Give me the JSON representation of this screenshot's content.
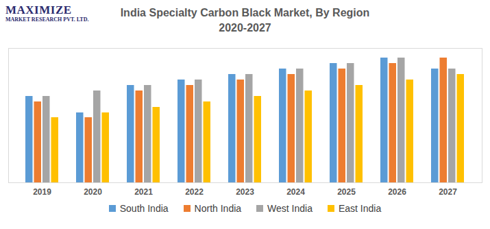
{
  "chart_data": {
    "type": "bar",
    "title": "India Specialty Carbon Black Market, By Region",
    "subtitle": "2020-2027",
    "logo": [
      "MAXIMIZE",
      "MARKET RESEARCH PVT. LTD."
    ],
    "categories": [
      "2019",
      "2020",
      "2021",
      "2022",
      "2023",
      "2024",
      "2025",
      "2026",
      "2027"
    ],
    "series": [
      {
        "name": "South India",
        "color": "#5b9bd5",
        "values": [
          126,
          102,
          142,
          150,
          158,
          166,
          174,
          182,
          166
        ]
      },
      {
        "name": "North India",
        "color": "#ed7d31",
        "values": [
          118,
          95,
          134,
          142,
          150,
          158,
          166,
          174,
          182
        ]
      },
      {
        "name": "West India",
        "color": "#a5a5a5",
        "values": [
          126,
          134,
          142,
          150,
          158,
          166,
          174,
          182,
          166
        ]
      },
      {
        "name": "East India",
        "color": "#ffc000",
        "values": [
          95,
          102,
          110,
          118,
          126,
          134,
          142,
          150,
          158
        ]
      }
    ],
    "ylim": [
      0,
      196
    ],
    "tick_labels": "x",
    "grid": false,
    "legend": "bottom"
  }
}
